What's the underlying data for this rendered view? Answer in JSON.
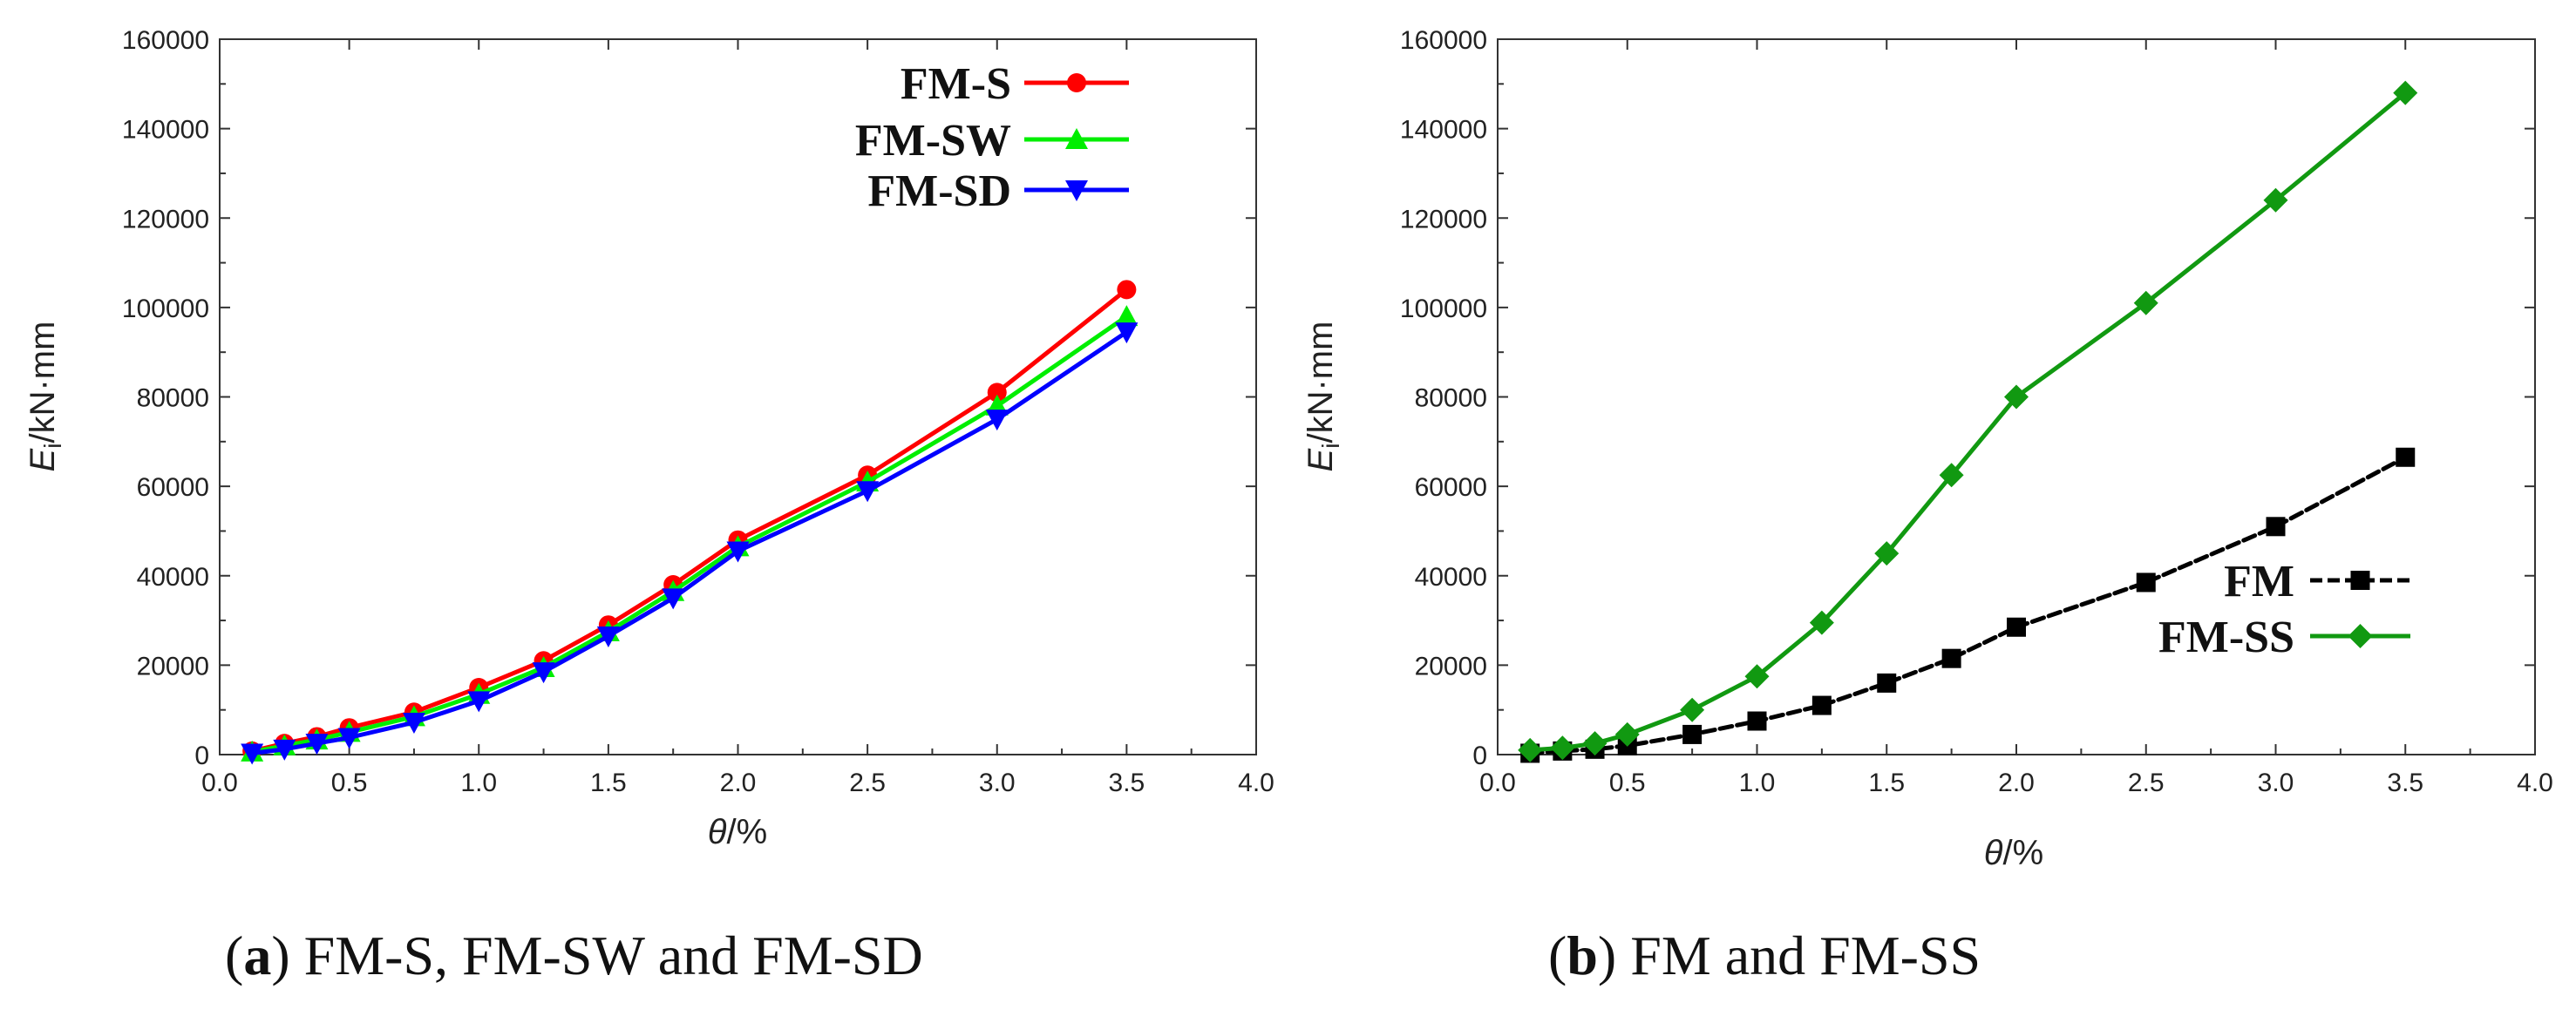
{
  "chart_data": [
    {
      "type": "line",
      "caption_letter": "a",
      "caption_text": "FM-S, FM-SW and FM-SD",
      "xlabel_symbol": "θ",
      "xlabel_unit": "/%",
      "ylabel_symbol": "E",
      "ylabel_subscript": "i",
      "ylabel_unit": "/kN·mm",
      "xlim": [
        0,
        4
      ],
      "ylim": [
        0,
        160000
      ],
      "xticks": [
        "0.0",
        "0.5",
        "1.0",
        "1.5",
        "2.0",
        "2.5",
        "3.0",
        "3.5",
        "4.0"
      ],
      "yticks": [
        "0",
        "20000",
        "40000",
        "60000",
        "80000",
        "100000",
        "120000",
        "140000",
        "160000"
      ],
      "legend_position": "top-right",
      "series": [
        {
          "name": "FM-S",
          "color": "#ff0000",
          "marker": "circle",
          "x": [
            0.125,
            0.25,
            0.375,
            0.5,
            0.75,
            1.0,
            1.25,
            1.5,
            1.75,
            2.0,
            2.5,
            3.0,
            3.5
          ],
          "y": [
            800,
            2500,
            4000,
            6000,
            9500,
            15000,
            21000,
            29000,
            38000,
            48000,
            62500,
            81000,
            104000
          ]
        },
        {
          "name": "FM-SW",
          "color": "#00ee00",
          "marker": "triangle-up",
          "x": [
            0.125,
            0.25,
            0.375,
            0.5,
            0.75,
            1.0,
            1.25,
            1.5,
            1.75,
            2.0,
            2.5,
            3.0,
            3.5
          ],
          "y": [
            600,
            2000,
            3300,
            5000,
            8500,
            13500,
            19500,
            27500,
            36500,
            46500,
            61000,
            78000,
            98000
          ]
        },
        {
          "name": "FM-SD",
          "color": "#0000ff",
          "marker": "triangle-down",
          "x": [
            0.125,
            0.25,
            0.375,
            0.5,
            0.75,
            1.0,
            1.25,
            1.5,
            1.75,
            2.0,
            2.5,
            3.0,
            3.5
          ],
          "y": [
            300,
            1200,
            2500,
            3800,
            7200,
            12000,
            18500,
            26500,
            35000,
            45500,
            59000,
            75000,
            94500
          ]
        }
      ]
    },
    {
      "type": "line",
      "caption_letter": "b",
      "caption_text": "FM and FM-SS",
      "xlabel_symbol": "θ",
      "xlabel_unit": "/%",
      "ylabel_symbol": "E",
      "ylabel_subscript": "i",
      "ylabel_unit": "/kN·mm",
      "xlim": [
        0,
        4
      ],
      "ylim": [
        0,
        160000
      ],
      "xticks": [
        "0.0",
        "0.5",
        "1.0",
        "1.5",
        "2.0",
        "2.5",
        "3.0",
        "3.5",
        "4.0"
      ],
      "yticks": [
        "0",
        "20000",
        "40000",
        "60000",
        "80000",
        "100000",
        "120000",
        "140000",
        "160000"
      ],
      "legend_position": "center-right",
      "series": [
        {
          "name": "FM",
          "color": "#000000",
          "marker": "square",
          "dashed": true,
          "x": [
            0.125,
            0.25,
            0.375,
            0.5,
            0.75,
            1.0,
            1.25,
            1.5,
            1.75,
            2.0,
            2.5,
            3.0,
            3.5
          ],
          "y": [
            300,
            800,
            1200,
            2000,
            4500,
            7500,
            11000,
            16000,
            21500,
            28500,
            38500,
            51000,
            66500
          ]
        },
        {
          "name": "FM-SS",
          "color": "#119911",
          "marker": "diamond",
          "x": [
            0.125,
            0.25,
            0.375,
            0.5,
            0.75,
            1.0,
            1.25,
            1.5,
            1.75,
            2.0,
            2.5,
            3.0,
            3.5
          ],
          "y": [
            1000,
            1500,
            2500,
            4500,
            10000,
            17500,
            29500,
            45000,
            62500,
            80000,
            101000,
            124000,
            148000
          ]
        }
      ]
    }
  ]
}
